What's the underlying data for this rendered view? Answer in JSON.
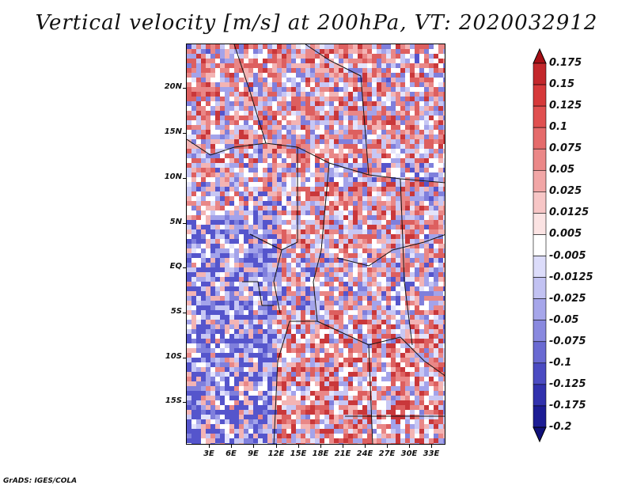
{
  "title": "Vertical velocity [m/s] at 200hPa, VT: 2020032912",
  "map": {
    "lat_labels": [
      "20N",
      "15N",
      "10N",
      "5N",
      "EQ",
      "5S",
      "10S",
      "15S"
    ],
    "lon_labels": [
      "3E",
      "6E",
      "9E",
      "12E",
      "15E",
      "18E",
      "21E",
      "24E",
      "27E",
      "30E",
      "33E"
    ]
  },
  "colorbar": {
    "labels": [
      "0.175",
      "0.15",
      "0.125",
      "0.1",
      "0.075",
      "0.05",
      "0.025",
      "0.0125",
      "0.005",
      "-0.005",
      "-0.0125",
      "-0.025",
      "-0.05",
      "-0.075",
      "-0.1",
      "-0.125",
      "-0.175",
      "-0.2"
    ],
    "colors": [
      "#a50f15",
      "#c3272b",
      "#d6393a",
      "#e05050",
      "#e56b6b",
      "#eb8888",
      "#f1a6a6",
      "#f7c6c6",
      "#fbe3e3",
      "#ffffff",
      "#dcdcfa",
      "#c2c2f2",
      "#a6a6ea",
      "#8989df",
      "#6a6ad2",
      "#4b4bc2",
      "#3131ad",
      "#1c1c94",
      "#10107a"
    ]
  },
  "footer": "GrADS: IGES/COLA"
}
